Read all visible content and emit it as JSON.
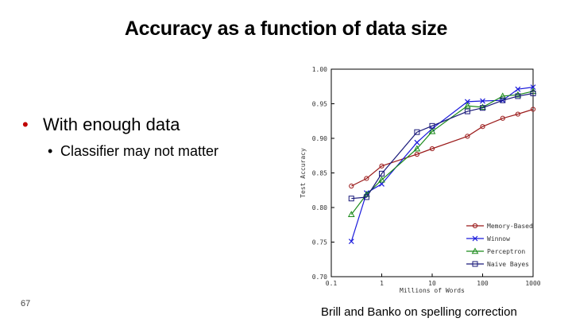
{
  "slide": {
    "title": "Accuracy as a function of data size",
    "bullet1": "With enough data",
    "bullet2": "Classifier may not matter",
    "page_number": "67",
    "caption": "Brill and Banko on spelling correction"
  },
  "chart_data": {
    "type": "line",
    "title": "",
    "xlabel": "Millions of Words",
    "ylabel": "Test Accuracy",
    "xscale": "log",
    "xlim": [
      0.1,
      1000
    ],
    "ylim": [
      0.7,
      1.0
    ],
    "xticks": [
      0.1,
      1,
      10,
      100,
      1000
    ],
    "xtick_labels": [
      "0.1",
      "1",
      "10",
      "100",
      "1000"
    ],
    "yticks": [
      0.7,
      0.75,
      0.8,
      0.85,
      0.9,
      0.95,
      1.0
    ],
    "ytick_labels": [
      "0.70",
      "0.75",
      "0.80",
      "0.85",
      "0.90",
      "0.95",
      "1.00"
    ],
    "legend_position": "bottom-right",
    "grid": false,
    "x": [
      0.25,
      0.5,
      1,
      5,
      10,
      50,
      100,
      250,
      500,
      1000
    ],
    "series": [
      {
        "name": "Memory-Based",
        "color": "#9b1b1b",
        "marker": "circle",
        "values": [
          0.831,
          0.842,
          0.86,
          0.877,
          0.885,
          0.903,
          0.917,
          0.929,
          0.935,
          0.942
        ]
      },
      {
        "name": "Winnow",
        "color": "#1a1adb",
        "marker": "x",
        "values": [
          0.751,
          0.821,
          0.834,
          0.894,
          0.914,
          0.953,
          0.954,
          0.955,
          0.971,
          0.974
        ]
      },
      {
        "name": "Perceptron",
        "color": "#1a8a1a",
        "marker": "triangle",
        "values": [
          0.79,
          0.819,
          0.84,
          0.885,
          0.91,
          0.947,
          0.945,
          0.961,
          0.963,
          0.968
        ]
      },
      {
        "name": "Naive Bayes",
        "color": "#1a1a7a",
        "marker": "square",
        "values": [
          0.813,
          0.815,
          0.849,
          0.909,
          0.918,
          0.939,
          0.944,
          0.955,
          0.961,
          0.965
        ]
      }
    ]
  }
}
